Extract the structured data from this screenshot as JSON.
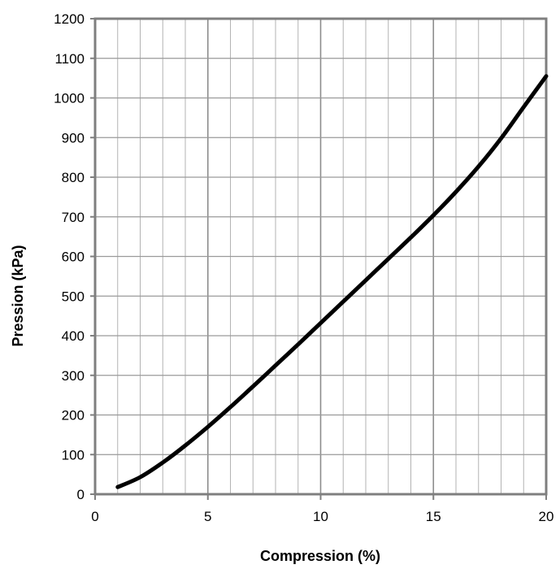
{
  "chart_data": {
    "type": "line",
    "title": "",
    "xlabel": "Compression (%)",
    "ylabel": "Pression (kPa)",
    "xlim": [
      0,
      20
    ],
    "ylim": [
      0,
      1200
    ],
    "x_ticks": [
      0,
      5,
      10,
      15,
      20
    ],
    "y_ticks": [
      0,
      100,
      200,
      300,
      400,
      500,
      600,
      700,
      800,
      900,
      1000,
      1100,
      1200
    ],
    "x_minor_step": 1,
    "grid": true,
    "legend": "none",
    "series": [
      {
        "x": [
          1,
          2,
          3,
          4,
          5,
          6,
          7,
          8,
          9,
          10,
          11,
          12,
          13,
          14,
          15,
          16,
          17,
          18,
          19,
          20
        ],
        "y": [
          18,
          43,
          80,
          123,
          170,
          220,
          272,
          325,
          378,
          432,
          486,
          540,
          594,
          648,
          704,
          763,
          827,
          898,
          977,
          1055
        ],
        "color": "#000000"
      }
    ]
  }
}
